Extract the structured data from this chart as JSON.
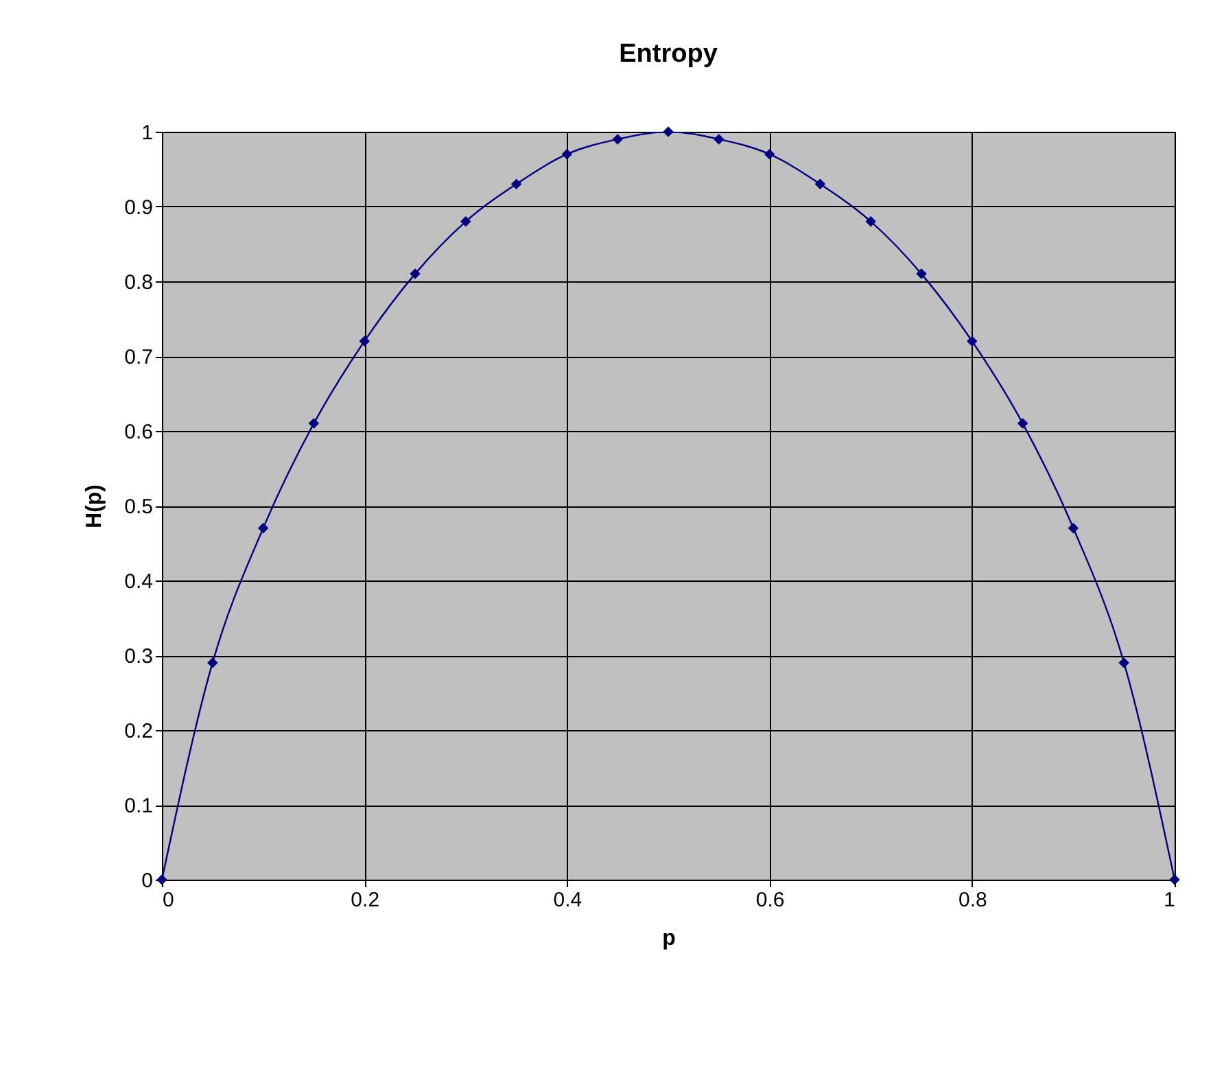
{
  "chart_data": {
    "type": "line",
    "title": "Entropy",
    "xlabel": "p",
    "ylabel": "H(p)",
    "x": [
      0,
      0.05,
      0.1,
      0.15,
      0.2,
      0.25,
      0.3,
      0.35,
      0.4,
      0.45,
      0.5,
      0.55,
      0.6,
      0.65,
      0.7,
      0.75,
      0.8,
      0.85,
      0.9,
      0.95,
      1
    ],
    "series": [
      {
        "color": "#000080",
        "values": [
          0,
          0.29,
          0.47,
          0.61,
          0.72,
          0.81,
          0.88,
          0.93,
          0.97,
          0.99,
          1.0,
          0.99,
          0.97,
          0.93,
          0.88,
          0.81,
          0.72,
          0.61,
          0.47,
          0.29,
          0
        ]
      }
    ],
    "xlim": [
      0,
      1
    ],
    "xticks": [
      0,
      0.2,
      0.4,
      0.6,
      0.8,
      1
    ],
    "ylim": [
      0,
      1
    ],
    "yticks": [
      0,
      0.1,
      0.2,
      0.3,
      0.4,
      0.5,
      0.6,
      0.7,
      0.8,
      0.9,
      1
    ],
    "grid": true,
    "marker": "diamond",
    "line_style": "solid"
  }
}
